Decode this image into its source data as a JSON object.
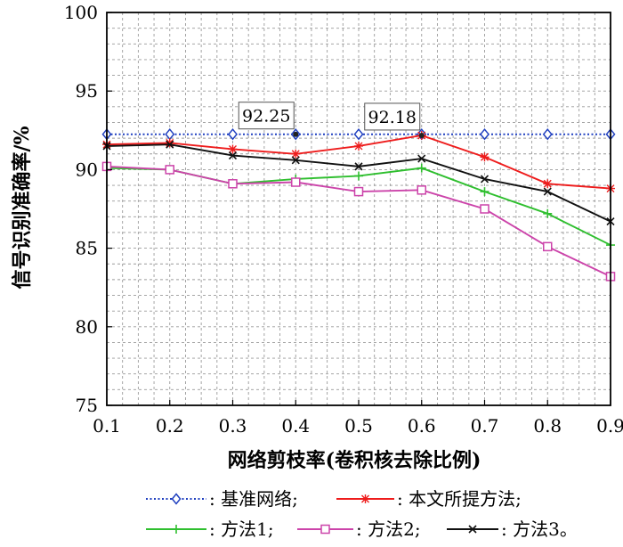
{
  "chart_data": {
    "type": "line",
    "title": "",
    "xlabel": "网络剪枝率(卷积核去除比例)",
    "ylabel": "信号识别准确率/%",
    "x": [
      0.1,
      0.2,
      0.3,
      0.4,
      0.5,
      0.6,
      0.7,
      0.8,
      0.9
    ],
    "x_tick_labels": [
      "0.1",
      "0.2",
      "0.3",
      "0.4",
      "0.5",
      "0.6",
      "0.7",
      "0.8",
      "0.9"
    ],
    "xlim": [
      0.1,
      0.9
    ],
    "ylim": [
      75,
      100
    ],
    "y_ticks": [
      75,
      80,
      85,
      90,
      95,
      100
    ],
    "y_tick_labels": [
      "75",
      "80",
      "85",
      "90",
      "95",
      "100"
    ],
    "grid": true,
    "legend_position": "bottom",
    "series": [
      {
        "key": "base",
        "name": "基准网络",
        "legend_label": ": 基准网络;",
        "color": "#1f3fbf",
        "style": "dotted",
        "marker": "diamond",
        "values": [
          92.25,
          92.25,
          92.25,
          92.25,
          92.25,
          92.25,
          92.25,
          92.25,
          92.25
        ]
      },
      {
        "key": "proposed",
        "name": "本文所提方法",
        "legend_label": ": 本文所提方法;",
        "color": "#ee1c1c",
        "style": "solid",
        "marker": "star",
        "values": [
          91.6,
          91.7,
          91.3,
          91.0,
          91.5,
          92.18,
          90.8,
          89.1,
          88.8
        ]
      },
      {
        "key": "m1",
        "name": "方法1",
        "legend_label": ": 方法1;",
        "color": "#2fbf2f",
        "style": "solid",
        "marker": "plus",
        "values": [
          90.1,
          90.0,
          89.1,
          89.4,
          89.6,
          90.1,
          88.6,
          87.2,
          85.2
        ]
      },
      {
        "key": "m2",
        "name": "方法2",
        "legend_label": ": 方法2;",
        "color": "#cc44aa",
        "style": "solid",
        "marker": "square",
        "values": [
          90.2,
          90.0,
          89.1,
          89.2,
          88.6,
          88.7,
          87.5,
          85.1,
          83.2
        ]
      },
      {
        "key": "m3",
        "name": "方法3",
        "legend_label": ": 方法3。",
        "color": "#111111",
        "style": "solid",
        "marker": "x",
        "values": [
          91.5,
          91.6,
          90.9,
          90.6,
          90.2,
          90.7,
          89.4,
          88.6,
          86.7
        ]
      }
    ],
    "annotations": [
      {
        "text": "92.25",
        "x": 0.4,
        "y": 92.25
      },
      {
        "text": "92.18",
        "x": 0.6,
        "y": 92.18
      }
    ]
  }
}
